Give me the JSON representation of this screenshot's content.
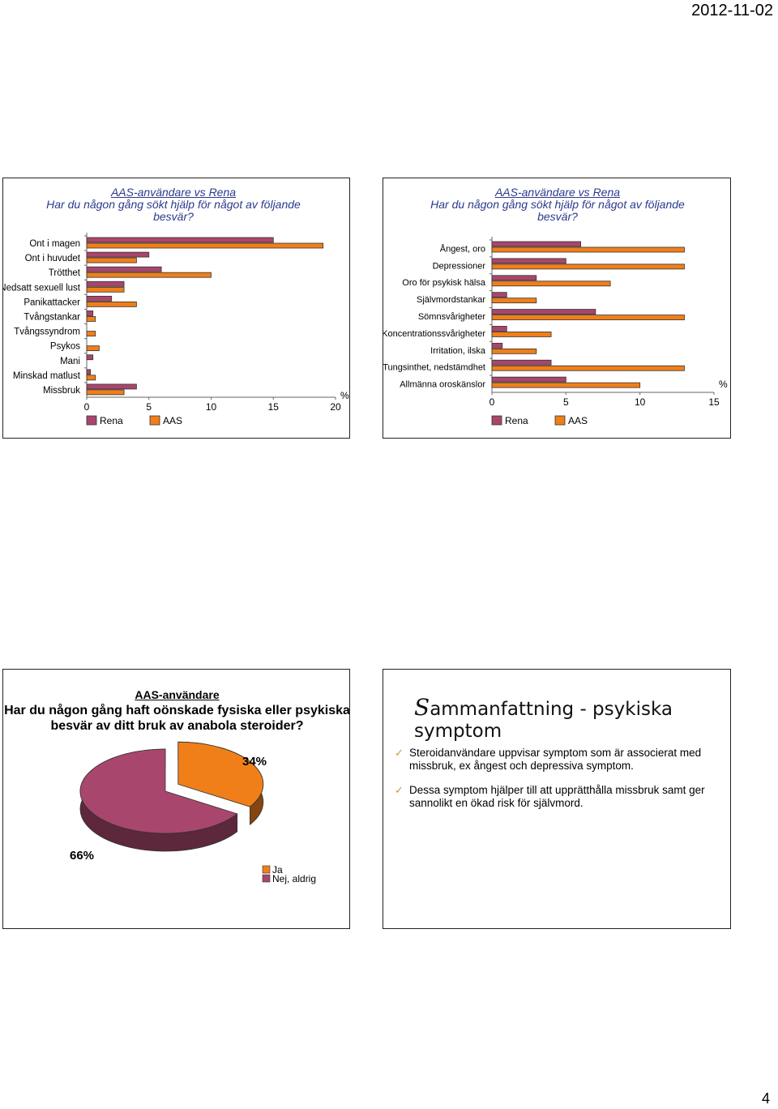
{
  "header": {
    "date": "2012-11-02"
  },
  "footer": {
    "page_number": "4"
  },
  "slide1": {
    "title_line1": "AAS-användare vs Rena",
    "title_line2": "Har du någon gång sökt hjälp för något av följande besvär?",
    "chart_data": {
      "type": "bar",
      "orientation": "horizontal",
      "categories": [
        "Ont i magen",
        "Ont i huvudet",
        "Trötthet",
        "Nedsatt sexuell lust",
        "Panikattacker",
        "Tvångstankar",
        "Tvångssyndrom",
        "Psykos",
        "Mani",
        "Minskad matlust",
        "Missbruk"
      ],
      "series": [
        {
          "name": "Rena",
          "color": "#a9466d",
          "values": [
            15,
            5,
            6,
            3,
            2,
            0.5,
            0,
            0,
            0.5,
            0.3,
            4
          ]
        },
        {
          "name": "AAS",
          "color": "#f07f1a",
          "values": [
            19,
            4,
            10,
            3,
            4,
            0.7,
            0.7,
            1,
            0,
            0.7,
            3
          ]
        }
      ],
      "xlim": [
        0,
        20
      ],
      "xticks": [
        "0",
        "5",
        "10",
        "15",
        "20"
      ],
      "xlabel": "%"
    }
  },
  "slide2": {
    "title_line1": "AAS-användare vs Rena",
    "title_line2": "Har du någon gång sökt hjälp för något av följande besvär?",
    "chart_data": {
      "type": "bar",
      "orientation": "horizontal",
      "categories": [
        "Ångest, oro",
        "Depressioner",
        "Oro för psykisk hälsa",
        "Självmordstankar",
        "Sömnsvårigheter",
        "Koncentrationssvårigheter",
        "Irritation, ilska",
        "Tungsinthet, nedstämdhet",
        "Allmänna oroskänslor"
      ],
      "series": [
        {
          "name": "Rena",
          "color": "#a9466d",
          "values": [
            6,
            5,
            3,
            1,
            7,
            1,
            0.7,
            4,
            5
          ]
        },
        {
          "name": "AAS",
          "color": "#f07f1a",
          "values": [
            13,
            13,
            8,
            3,
            13,
            4,
            3,
            13,
            10
          ]
        }
      ],
      "xlim": [
        0,
        15
      ],
      "xticks": [
        "0",
        "5",
        "10",
        "15"
      ],
      "xlabel": "%"
    }
  },
  "slide3": {
    "title_line1": "AAS-användare",
    "title_line2": "Har du någon gång haft oönskade fysiska eller psykiska besvär av ditt bruk av anabola steroider?",
    "chart_data": {
      "type": "pie",
      "slices": [
        {
          "name": "Ja",
          "value": 34,
          "label": "34%",
          "color": "#f07f1a"
        },
        {
          "name": "Nej, aldrig",
          "value": 66,
          "label": "66%",
          "color": "#a9466d"
        }
      ]
    }
  },
  "slide4": {
    "title_initial": "S",
    "title_rest": "ammanfattning - psykiska symptom",
    "bullets": [
      "Steroidanvändare uppvisar symptom som är associerat med missbruk, ex ångest och depressiva symptom.",
      "Dessa symptom hjälper till att upprätthålla missbruk samt ger sannolikt en ökad risk för självmord."
    ]
  }
}
